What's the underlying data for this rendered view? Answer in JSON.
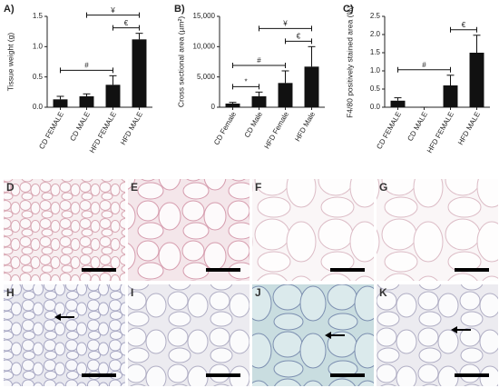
{
  "chart_data": [
    {
      "type": "bar",
      "title": "A)",
      "y_label": "Tissue weight (g)",
      "categories": [
        "CD FEMALE",
        "CD MALE",
        "HFD FEMALE",
        "HFD MALE"
      ],
      "values": [
        0.13,
        0.18,
        0.37,
        1.12
      ],
      "errors": [
        0.05,
        0.04,
        0.15,
        0.1
      ],
      "color": "#111111",
      "ylim": [
        0,
        1.5
      ],
      "yticks": [
        {
          "value": 0,
          "label": "0.0"
        },
        0.5,
        {
          "value": 1,
          "label": "1.0"
        },
        1.5
      ],
      "annotations": [
        {
          "text": "#",
          "from": 0,
          "to": 2
        },
        {
          "text": "€",
          "from": 2,
          "to": 3
        },
        {
          "text": "¥",
          "from": 1,
          "to": 3
        }
      ]
    },
    {
      "type": "bar",
      "title": "B)",
      "y_label": "Cross sectional area (µm²)",
      "categories": [
        "CD Female",
        "CD Male",
        "HFD Female",
        "HFD Male"
      ],
      "values": [
        600,
        1800,
        4000,
        6700
      ],
      "errors": [
        200,
        700,
        2000,
        3300
      ],
      "color": "#111111",
      "ylim": [
        0,
        15000
      ],
      "yticks": [
        0,
        {
          "value": 5000,
          "label": "5,000"
        },
        {
          "value": 10000,
          "label": "10,000"
        },
        {
          "value": 15000,
          "label": "15,000"
        }
      ],
      "annotations": [
        {
          "text": "*",
          "from": 0,
          "to": 1
        },
        {
          "text": "#",
          "from": 0,
          "to": 2
        },
        {
          "text": "€",
          "from": 2,
          "to": 3
        },
        {
          "text": "¥",
          "from": 1,
          "to": 3
        }
      ]
    },
    {
      "type": "bar",
      "title": "C)",
      "y_label": "F4/80 positively stained area (%)",
      "categories": [
        "CD FEMALE",
        "CD MALE",
        "HFD FEMALE",
        "HFD MALE"
      ],
      "values": [
        0.18,
        0,
        0.6,
        1.5
      ],
      "errors": [
        0.08,
        0,
        0.28,
        0.48
      ],
      "color": "#111111",
      "ylim": [
        0,
        2.5
      ],
      "yticks": [
        {
          "value": 0,
          "label": "0.0"
        },
        0.5,
        {
          "value": 1,
          "label": "1.0"
        },
        1.5,
        {
          "value": 2,
          "label": "2.0"
        },
        2.5
      ],
      "annotations": [
        {
          "text": "#",
          "from": 0,
          "to": 2
        },
        {
          "text": "€",
          "from": 2,
          "to": 3
        }
      ]
    }
  ],
  "image_panels": {
    "labels": [
      "D",
      "E",
      "F",
      "G",
      "H",
      "I",
      "J",
      "K"
    ]
  }
}
